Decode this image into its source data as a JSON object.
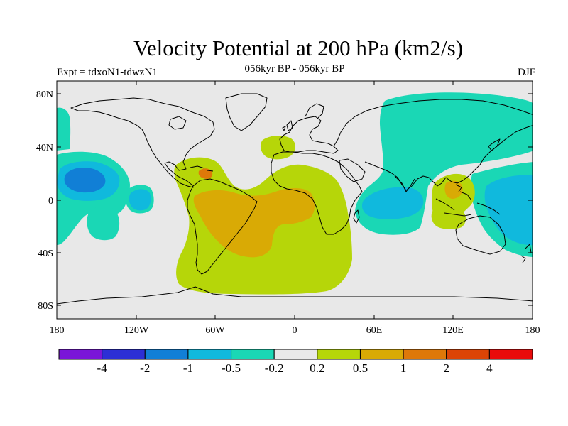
{
  "title": "Velocity Potential at 200 hPa (km2/s)",
  "subtitle": "056kyr BP - 056kyr BP",
  "left_label": "Expt = tdxoN1-tdwzN1",
  "right_label": "DJF",
  "lat_ticks": [
    "80N",
    "40N",
    "0",
    "40S",
    "80S"
  ],
  "lon_ticks": [
    "180",
    "120W",
    "60W",
    "0",
    "60E",
    "120E",
    "180"
  ],
  "colorbar": {
    "colors": [
      "#7a16d8",
      "#2c2fd5",
      "#117fd6",
      "#10b9dd",
      "#1ad7b5",
      "#e8e8e8",
      "#b6d609",
      "#d9aa05",
      "#de7809",
      "#dc4406",
      "#e80b0b"
    ],
    "labels": [
      "-4",
      "-2",
      "-1",
      "-0.5",
      "-0.2",
      "0.2",
      "0.5",
      "1",
      "2",
      "4"
    ]
  },
  "colors": {
    "background": "#e8e8e8",
    "teal": "#1ad7b5",
    "cyan": "#10b9dd",
    "blue": "#117fd6",
    "yellow_green": "#b6d609",
    "orange": "#d9aa05",
    "dark_orange": "#de7809"
  }
}
